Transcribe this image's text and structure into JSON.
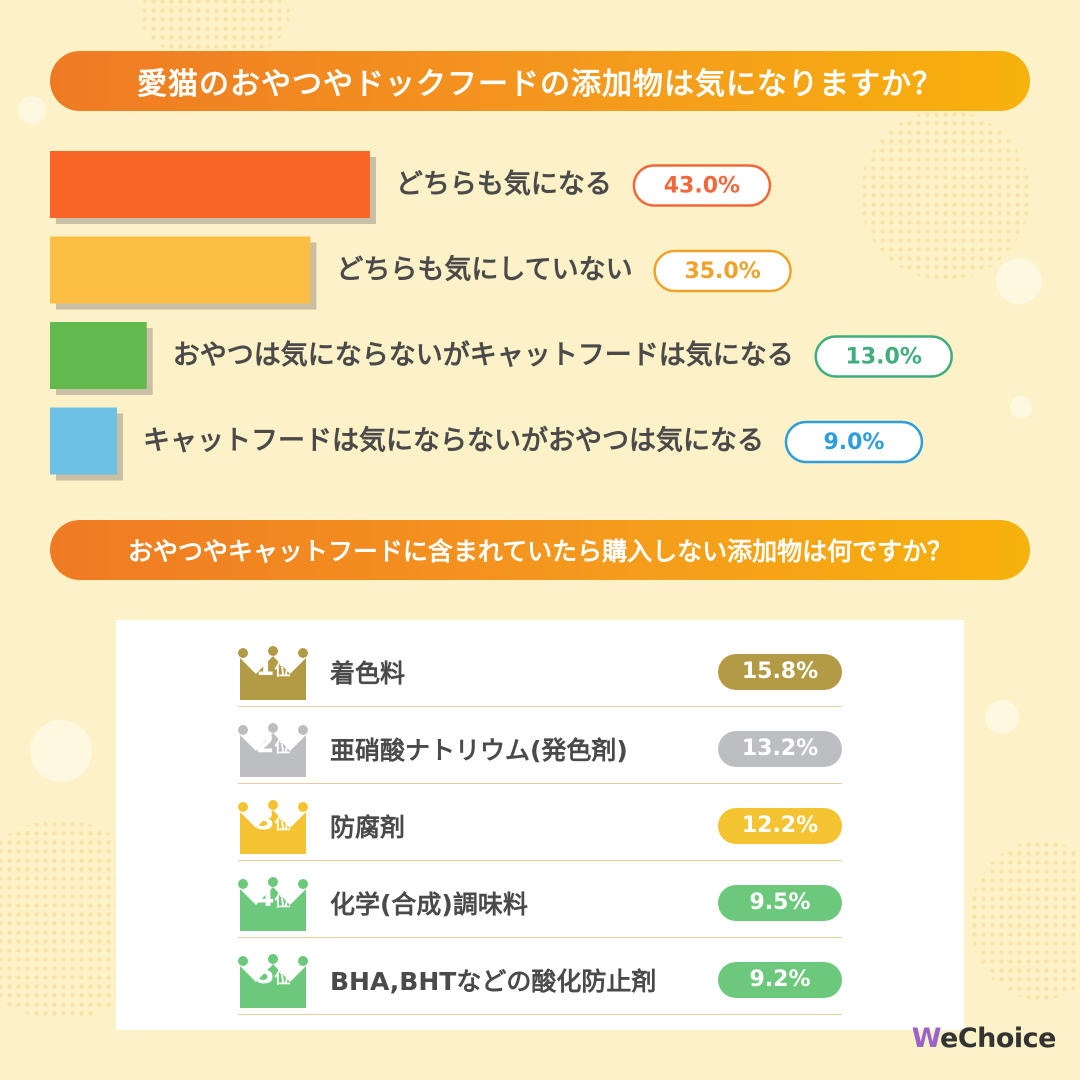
{
  "banner1": {
    "title": "愛猫のおやつやドックフードの添加物は気になりますか？"
  },
  "banner2": {
    "title": "おやつやキャットフードに含まれていたら購入しない添加物は何ですか？"
  },
  "chart_data": [
    {
      "type": "bar",
      "orientation": "horizontal",
      "title": "愛猫のおやつやドックフードの添加物は気になりますか？",
      "categories": [
        "どちらも気になる",
        "どちらも気にしていない",
        "おやつは気にならないがキャットフードは気になる",
        "キャットフードは気にならないがおやつは気になる"
      ],
      "values": [
        43.0,
        35.0,
        13.0,
        9.0
      ],
      "value_labels": [
        "43.0%",
        "35.0%",
        "13.0%",
        "9.0%"
      ],
      "unit": "%",
      "colors": [
        "#f96427",
        "#fbbe44",
        "#62b94e",
        "#6cc1e4"
      ],
      "label_colors": [
        "#f0683a",
        "#eea22a",
        "#3fae7d",
        "#2c9edb"
      ]
    },
    {
      "type": "table",
      "title": "おやつやキャットフードに含まれていたら購入しない添加物は何ですか？",
      "rows": [
        {
          "rank": "1",
          "rank_suffix": "位",
          "label": "着色料",
          "value": 15.8,
          "value_label": "15.8%",
          "color": "#b39a45"
        },
        {
          "rank": "2",
          "rank_suffix": "位",
          "label": "亜硝酸ナトリウム(発色剤)",
          "value": 13.2,
          "value_label": "13.2%",
          "color": "#bdbec2"
        },
        {
          "rank": "3",
          "rank_suffix": "位",
          "label": "防腐剤",
          "value": 12.2,
          "value_label": "12.2%",
          "color": "#f4c331"
        },
        {
          "rank": "4",
          "rank_suffix": "位",
          "label": "化学(合成)調味料",
          "value": 9.5,
          "value_label": "9.5%",
          "color": "#6cc87b"
        },
        {
          "rank": "5",
          "rank_suffix": "位",
          "label": "BHA,BHTなどの酸化防止剤",
          "value": 9.2,
          "value_label": "9.2%",
          "color": "#6cc87b"
        }
      ]
    }
  ],
  "logo": {
    "w": "W",
    "rest": "eChoice"
  }
}
